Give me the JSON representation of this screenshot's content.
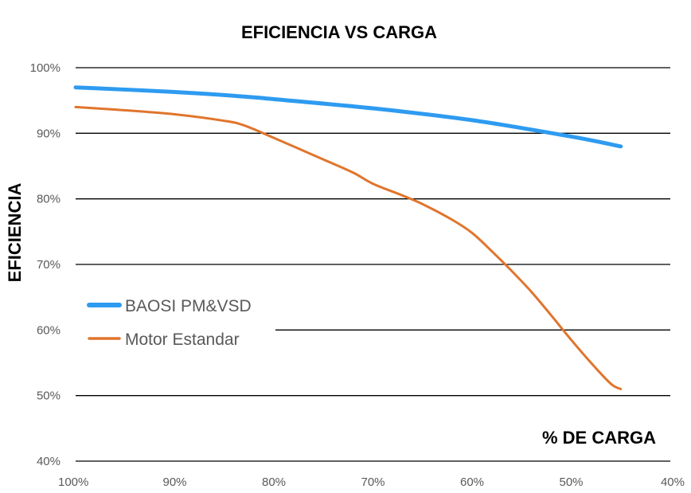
{
  "chart_data": {
    "type": "line",
    "title": "EFICIENCIA VS CARGA",
    "xlabel": "% DE CARGA",
    "ylabel": "EFICIENCIA",
    "x_reversed": true,
    "xlim": [
      100,
      40
    ],
    "ylim": [
      40,
      100
    ],
    "x_ticks": [
      {
        "value": 100,
        "label": "100%"
      },
      {
        "value": 90,
        "label": "90%"
      },
      {
        "value": 80,
        "label": "80%"
      },
      {
        "value": 70,
        "label": "70%"
      },
      {
        "value": 60,
        "label": "60%"
      },
      {
        "value": 50,
        "label": "50%"
      },
      {
        "value": 40,
        "label": "40%"
      }
    ],
    "y_ticks": [
      {
        "value": 100,
        "label": "100%"
      },
      {
        "value": 90,
        "label": "90%"
      },
      {
        "value": 80,
        "label": "80%"
      },
      {
        "value": 70,
        "label": "70%"
      },
      {
        "value": 60,
        "label": "60%"
      },
      {
        "value": 50,
        "label": "50%"
      },
      {
        "value": 40,
        "label": "40%"
      }
    ],
    "grid": true,
    "legend": "middle-left",
    "series": [
      {
        "name": "BAOSI PM&VSD",
        "color": "#2E9BF0",
        "points": [
          [
            100,
            97
          ],
          [
            90,
            96.3
          ],
          [
            83,
            95.6
          ],
          [
            80,
            95.2
          ],
          [
            70,
            93.8
          ],
          [
            60,
            92
          ],
          [
            50,
            89.5
          ],
          [
            45,
            88
          ]
        ]
      },
      {
        "name": "Motor Estandar",
        "color": "#E0752D",
        "points": [
          [
            100,
            94
          ],
          [
            95,
            93.5
          ],
          [
            90,
            92.9
          ],
          [
            85,
            91.9
          ],
          [
            83,
            91.2
          ],
          [
            80,
            89.3
          ],
          [
            75,
            86
          ],
          [
            72,
            84
          ],
          [
            70,
            82.3
          ],
          [
            67,
            80.5
          ],
          [
            65,
            79.2
          ],
          [
            62,
            76.8
          ],
          [
            60,
            74.8
          ],
          [
            58,
            72
          ],
          [
            56,
            69
          ],
          [
            54,
            65.8
          ],
          [
            52,
            62.2
          ],
          [
            50,
            58.5
          ],
          [
            48,
            55
          ],
          [
            46,
            51.8
          ],
          [
            45,
            51
          ]
        ]
      }
    ]
  }
}
